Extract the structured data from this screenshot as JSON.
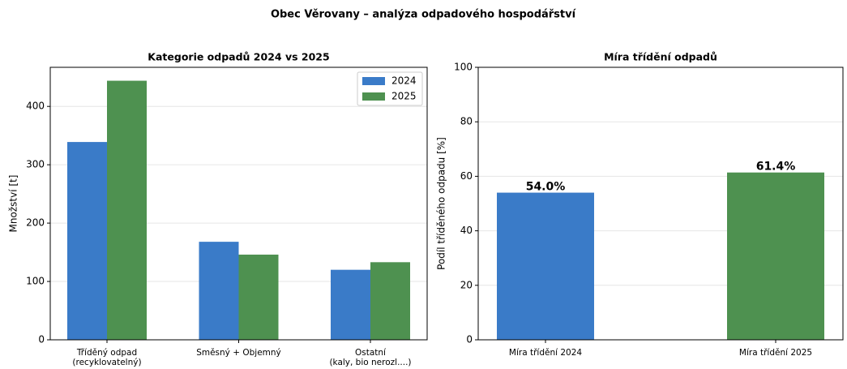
{
  "title": "Obec Věrovany – analýza odpadového hospodářství",
  "chart_data": [
    {
      "type": "bar",
      "title": "Kategorie odpadů 2024 vs 2025",
      "categories": [
        [
          "Tříděný odpad",
          "(recyklovatelný)"
        ],
        [
          "Směsný + Objemný"
        ],
        [
          "Ostatní",
          "(kaly, bio nerozl....)"
        ]
      ],
      "series": [
        {
          "name": "2024",
          "color": "#3a7bc8",
          "values": [
            339,
            168,
            120
          ]
        },
        {
          "name": "2025",
          "color": "#4e9150",
          "values": [
            444,
            146,
            133
          ]
        }
      ],
      "ylabel": "Množství [t]",
      "ylim": [
        0,
        467
      ],
      "yticks": [
        0,
        100,
        200,
        300,
        400
      ],
      "grid": true,
      "legend": "upper right"
    },
    {
      "type": "bar",
      "title": "Míra třídění odpadů",
      "categories": [
        [
          "Míra třídění 2024"
        ],
        [
          "Míra třídění 2025"
        ]
      ],
      "values": [
        54.0,
        61.4
      ],
      "value_labels": [
        "54.0%",
        "61.4%"
      ],
      "colors": [
        "#3a7bc8",
        "#4e9150"
      ],
      "ylabel": "Podíl tříděného odpadu [%]",
      "ylim": [
        0,
        100
      ],
      "yticks": [
        0,
        20,
        40,
        60,
        80,
        100
      ],
      "grid": true
    }
  ]
}
